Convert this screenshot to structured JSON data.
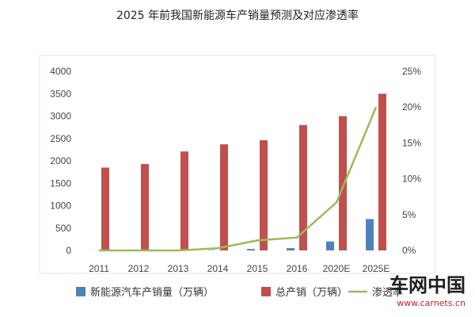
{
  "chart_data": {
    "type": "bar",
    "title": "2025 年前我国新能源车产销量预测及对应渗透率",
    "categories": [
      "2011",
      "2012",
      "2013",
      "2014",
      "2015",
      "2016",
      "2020E",
      "2025E"
    ],
    "series": [
      {
        "name": "新能源汽车产销量（万辆）",
        "kind": "bar",
        "axis": "left",
        "color": "#4f81bd",
        "values": [
          1,
          1,
          2,
          7,
          33,
          51,
          200,
          700
        ]
      },
      {
        "name": "总产销（万辆）",
        "kind": "bar",
        "axis": "left",
        "color": "#c0504d",
        "values": [
          1850,
          1930,
          2210,
          2370,
          2460,
          2800,
          3000,
          3500
        ]
      },
      {
        "name": "渗透率",
        "kind": "line",
        "axis": "right",
        "color": "#9bbb59",
        "values": [
          0.0,
          0.0,
          0.0,
          0.3,
          1.4,
          1.8,
          6.7,
          20.0
        ]
      }
    ],
    "yaxis_left": {
      "min": 0,
      "max": 4000,
      "ticks": [
        "0",
        "500",
        "1000",
        "1500",
        "2000",
        "2500",
        "3000",
        "3500",
        "4000"
      ]
    },
    "yaxis_right": {
      "min": 0,
      "max": 25,
      "ticks": [
        "0%",
        "5%",
        "10%",
        "15%",
        "20%",
        "25%"
      ]
    },
    "grid": false,
    "legend_position": "bottom"
  },
  "watermark": {
    "main": "车网中国",
    "sub": "www.carnets.cn"
  }
}
